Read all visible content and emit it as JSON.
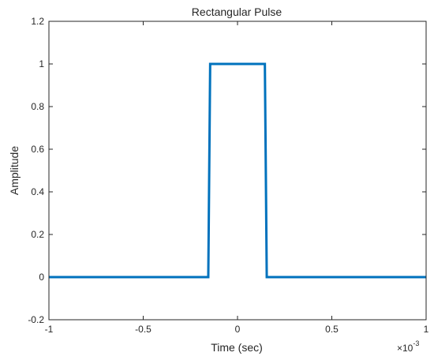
{
  "chart_data": {
    "type": "line",
    "title": "Rectangular Pulse",
    "xlabel": "Time (sec)",
    "ylabel": "Amplitude",
    "x_exponent_label": "×10",
    "x_exponent_power": "-3",
    "xlim": [
      -1,
      1
    ],
    "ylim": [
      -0.2,
      1.2
    ],
    "xticks": [
      -1,
      -0.5,
      0,
      0.5,
      1
    ],
    "xtick_labels": [
      "-1",
      "-0.5",
      "0",
      "0.5",
      "1"
    ],
    "yticks": [
      -0.2,
      0,
      0.2,
      0.4,
      0.6,
      0.8,
      1,
      1.2
    ],
    "ytick_labels": [
      "-0.2",
      "0",
      "0.2",
      "0.4",
      "0.6",
      "0.8",
      "1",
      "1.2"
    ],
    "grid": false,
    "series": [
      {
        "color": "#0072bd",
        "x": [
          -1,
          -0.155,
          -0.145,
          0.145,
          0.155,
          1
        ],
        "y": [
          0,
          0,
          1,
          1,
          0,
          0
        ]
      }
    ]
  }
}
